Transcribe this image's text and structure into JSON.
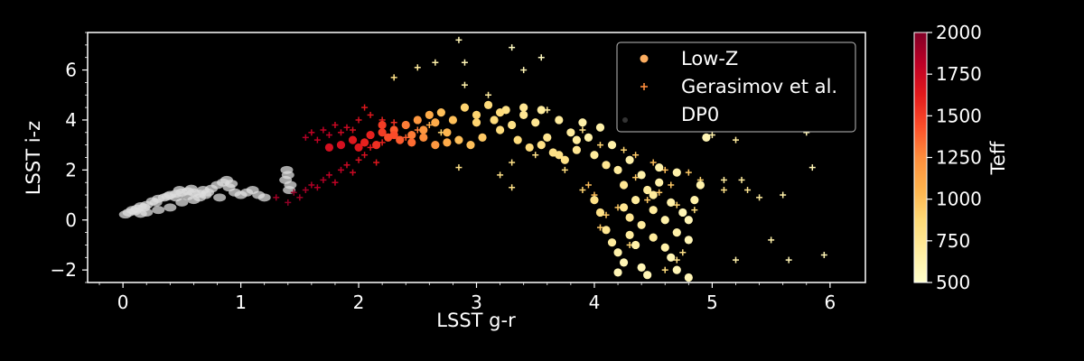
{
  "chart_data": {
    "type": "scatter",
    "xlabel": "LSST g-r",
    "ylabel": "LSST i-z",
    "xlim": [
      -0.3,
      6.3
    ],
    "ylim": [
      -2.5,
      7.5
    ],
    "x_ticks": [
      0,
      1,
      2,
      3,
      4,
      5,
      6
    ],
    "x_tick_labels": [
      "0",
      "1",
      "2",
      "3",
      "4",
      "5",
      "6"
    ],
    "y_ticks": [
      -2,
      0,
      2,
      4,
      6
    ],
    "y_tick_labels": [
      "−2",
      "0",
      "2",
      "4",
      "6"
    ],
    "background": "#000000",
    "colorbar": {
      "label": "Teff",
      "range": [
        500,
        2000
      ],
      "ticks": [
        500,
        750,
        1000,
        1250,
        1500,
        1750,
        2000
      ],
      "tick_labels": [
        "500",
        "750",
        "1000",
        "1250",
        "1500",
        "1750",
        "2000"
      ],
      "colormap": [
        "#ffffcc",
        "#ffeda0",
        "#fed976",
        "#feb24c",
        "#fd8d3c",
        "#fc4e2a",
        "#e31a1c",
        "#bd0026",
        "#800026"
      ]
    },
    "legend": {
      "placement": "top-right",
      "entries": [
        {
          "label": "Low-Z",
          "marker": "circle",
          "color": "#fdae61"
        },
        {
          "label": "Gerasimov et al.",
          "marker": "plus",
          "color": "#fd8d3c"
        },
        {
          "label": "DP0",
          "marker": "dot",
          "color": "#333333"
        }
      ]
    },
    "series": [
      {
        "name": "DP0",
        "marker": "dot",
        "color": "#dddddd",
        "points": [
          [
            0.02,
            0.22
          ],
          [
            0.05,
            0.3
          ],
          [
            0.08,
            0.4
          ],
          [
            0.12,
            0.45
          ],
          [
            0.15,
            0.55
          ],
          [
            0.2,
            0.6
          ],
          [
            0.25,
            0.75
          ],
          [
            0.3,
            0.85
          ],
          [
            0.35,
            0.9
          ],
          [
            0.4,
            1.0
          ],
          [
            0.45,
            1.05
          ],
          [
            0.5,
            1.1
          ],
          [
            0.55,
            1.15
          ],
          [
            0.6,
            1.1
          ],
          [
            0.65,
            1.05
          ],
          [
            0.7,
            1.0
          ],
          [
            0.1,
            0.35
          ],
          [
            0.18,
            0.5
          ],
          [
            0.28,
            0.7
          ],
          [
            0.38,
            0.95
          ],
          [
            0.48,
            1.2
          ],
          [
            0.58,
            1.25
          ],
          [
            0.68,
            1.2
          ],
          [
            0.75,
            1.25
          ],
          [
            0.8,
            1.4
          ],
          [
            0.85,
            1.5
          ],
          [
            0.9,
            1.3
          ],
          [
            0.95,
            1.1
          ],
          [
            1.0,
            1.0
          ],
          [
            1.05,
            1.1
          ],
          [
            1.1,
            1.2
          ],
          [
            0.82,
            0.9
          ],
          [
            0.88,
            1.6
          ],
          [
            0.92,
            1.45
          ],
          [
            1.15,
            1.0
          ],
          [
            1.2,
            0.9
          ],
          [
            1.38,
            1.6
          ],
          [
            1.4,
            1.8
          ],
          [
            1.42,
            1.4
          ],
          [
            1.39,
            2.0
          ],
          [
            1.41,
            1.2
          ],
          [
            0.3,
            0.4
          ],
          [
            0.4,
            0.5
          ],
          [
            0.5,
            0.7
          ],
          [
            0.6,
            0.8
          ],
          [
            0.2,
            0.3
          ],
          [
            0.15,
            0.25
          ],
          [
            0.45,
            0.9
          ],
          [
            0.55,
            0.95
          ],
          [
            0.65,
            0.9
          ],
          [
            0.72,
            1.1
          ]
        ]
      },
      {
        "name": "Gerasimov et al.",
        "marker": "plus",
        "points": [
          [
            1.3,
            0.9,
            1900
          ],
          [
            1.45,
            1.1,
            1950
          ],
          [
            1.55,
            1.2,
            1900
          ],
          [
            1.6,
            1.4,
            1850
          ],
          [
            1.7,
            1.6,
            1850
          ],
          [
            1.75,
            1.8,
            1800
          ],
          [
            1.85,
            2.0,
            1800
          ],
          [
            1.9,
            2.2,
            1750
          ],
          [
            2.0,
            2.4,
            1700
          ],
          [
            2.05,
            2.6,
            1700
          ],
          [
            2.1,
            2.9,
            1650
          ],
          [
            2.2,
            3.1,
            1600
          ],
          [
            2.25,
            3.3,
            1550
          ],
          [
            1.6,
            3.5,
            1800
          ],
          [
            1.7,
            3.6,
            1800
          ],
          [
            1.8,
            3.8,
            1750
          ],
          [
            1.9,
            3.7,
            1750
          ],
          [
            2.0,
            4.0,
            1700
          ],
          [
            2.1,
            4.2,
            1650
          ],
          [
            2.2,
            4.0,
            1600
          ],
          [
            2.3,
            3.9,
            1550
          ],
          [
            1.55,
            3.3,
            1850
          ],
          [
            1.65,
            3.2,
            1800
          ],
          [
            1.75,
            3.4,
            1800
          ],
          [
            1.85,
            3.5,
            1750
          ],
          [
            1.95,
            3.6,
            1700
          ],
          [
            2.05,
            4.5,
            1650
          ],
          [
            1.4,
            0.7,
            1950
          ],
          [
            1.5,
            0.9,
            1900
          ],
          [
            1.65,
            1.3,
            1850
          ],
          [
            1.8,
            1.5,
            1800
          ],
          [
            1.95,
            1.9,
            1750
          ],
          [
            2.15,
            2.3,
            1650
          ],
          [
            2.3,
            5.7,
            800
          ],
          [
            2.5,
            6.1,
            700
          ],
          [
            2.65,
            6.3,
            650
          ],
          [
            2.9,
            6.3,
            600
          ],
          [
            2.85,
            7.2,
            600
          ],
          [
            3.3,
            6.9,
            550
          ],
          [
            3.55,
            6.5,
            550
          ],
          [
            3.4,
            6.0,
            600
          ],
          [
            2.9,
            5.4,
            650
          ],
          [
            3.1,
            5.0,
            700
          ],
          [
            3.6,
            4.4,
            700
          ],
          [
            3.9,
            3.6,
            800
          ],
          [
            4.05,
            3.0,
            900
          ],
          [
            4.25,
            2.8,
            900
          ],
          [
            4.35,
            2.6,
            950
          ],
          [
            4.5,
            2.3,
            1000
          ],
          [
            4.6,
            2.0,
            1000
          ],
          [
            4.8,
            1.9,
            950
          ],
          [
            4.9,
            1.6,
            900
          ],
          [
            5.1,
            1.2,
            800
          ],
          [
            5.3,
            1.2,
            750
          ],
          [
            5.4,
            0.9,
            700
          ],
          [
            5.6,
            1.0,
            650
          ],
          [
            5.2,
            3.2,
            700
          ],
          [
            5.0,
            3.4,
            650
          ],
          [
            5.1,
            1.6,
            700
          ],
          [
            5.25,
            1.6,
            700
          ],
          [
            5.5,
            -0.8,
            650
          ],
          [
            5.65,
            -1.6,
            600
          ],
          [
            5.95,
            -1.4,
            600
          ],
          [
            5.2,
            -1.6,
            650
          ],
          [
            5.85,
            2.1,
            600
          ],
          [
            4.7,
            0.6,
            900
          ],
          [
            4.85,
            0.4,
            850
          ],
          [
            4.75,
            -1.3,
            800
          ],
          [
            4.7,
            -1.6,
            800
          ],
          [
            4.6,
            -2.0,
            850
          ],
          [
            4.3,
            -1.0,
            900
          ],
          [
            4.1,
            0.2,
            950
          ],
          [
            4.05,
            -0.3,
            950
          ],
          [
            3.9,
            1.2,
            900
          ],
          [
            3.75,
            2.0,
            850
          ],
          [
            3.5,
            2.6,
            800
          ],
          [
            3.3,
            2.3,
            800
          ],
          [
            3.2,
            1.8,
            800
          ],
          [
            3.3,
            1.3,
            800
          ],
          [
            2.85,
            2.1,
            800
          ],
          [
            4.45,
            0.8,
            950
          ],
          [
            4.55,
            1.1,
            950
          ],
          [
            4.65,
            1.4,
            950
          ],
          [
            4.2,
            0.5,
            950
          ],
          [
            4.35,
            1.7,
            950
          ],
          [
            5.8,
            3.5,
            600
          ],
          [
            4.0,
            1.0,
            1000
          ],
          [
            3.95,
            1.4,
            1000
          ],
          [
            2.7,
            3.5,
            900
          ],
          [
            2.4,
            3.3,
            1400
          ],
          [
            2.5,
            3.6,
            1300
          ],
          [
            2.6,
            3.8,
            1100
          ]
        ]
      },
      {
        "name": "Low-Z",
        "marker": "circle",
        "points": [
          [
            1.75,
            2.9,
            1700
          ],
          [
            1.85,
            3.0,
            1700
          ],
          [
            1.95,
            3.2,
            1650
          ],
          [
            2.0,
            2.9,
            1650
          ],
          [
            2.05,
            3.1,
            1600
          ],
          [
            2.1,
            3.4,
            1600
          ],
          [
            2.15,
            3.0,
            1550
          ],
          [
            2.2,
            3.5,
            1500
          ],
          [
            2.25,
            3.3,
            1450
          ],
          [
            2.3,
            3.6,
            1400
          ],
          [
            2.35,
            3.2,
            1400
          ],
          [
            2.4,
            3.8,
            1300
          ],
          [
            2.45,
            3.4,
            1300
          ],
          [
            2.5,
            4.0,
            1200
          ],
          [
            2.55,
            3.6,
            1200
          ],
          [
            2.6,
            4.2,
            1100
          ],
          [
            2.65,
            3.9,
            1100
          ],
          [
            2.7,
            4.3,
            1000
          ],
          [
            2.75,
            3.5,
            1050
          ],
          [
            2.8,
            4.0,
            1000
          ],
          [
            2.85,
            3.2,
            1000
          ],
          [
            2.9,
            4.5,
            900
          ],
          [
            2.95,
            3.0,
            1000
          ],
          [
            3.0,
            3.9,
            900
          ],
          [
            3.05,
            3.3,
            950
          ],
          [
            3.1,
            4.6,
            850
          ],
          [
            3.15,
            4.0,
            850
          ],
          [
            3.2,
            3.6,
            850
          ],
          [
            3.25,
            4.4,
            800
          ],
          [
            3.3,
            3.8,
            800
          ],
          [
            3.35,
            3.2,
            850
          ],
          [
            3.4,
            4.2,
            750
          ],
          [
            3.45,
            2.9,
            850
          ],
          [
            3.5,
            3.9,
            750
          ],
          [
            3.55,
            4.4,
            700
          ],
          [
            3.6,
            3.3,
            750
          ],
          [
            3.65,
            2.7,
            800
          ],
          [
            3.7,
            4.0,
            700
          ],
          [
            3.75,
            2.4,
            800
          ],
          [
            3.8,
            3.5,
            700
          ],
          [
            3.85,
            2.8,
            750
          ],
          [
            3.9,
            3.9,
            650
          ],
          [
            3.95,
            3.3,
            650
          ],
          [
            4.0,
            2.6,
            700
          ],
          [
            4.05,
            3.7,
            650
          ],
          [
            4.1,
            2.2,
            750
          ],
          [
            4.15,
            3.0,
            650
          ],
          [
            4.2,
            2.0,
            700
          ],
          [
            4.25,
            1.4,
            750
          ],
          [
            4.3,
            2.4,
            650
          ],
          [
            4.35,
            0.8,
            700
          ],
          [
            4.4,
            1.8,
            650
          ],
          [
            4.45,
            1.2,
            700
          ],
          [
            4.5,
            0.4,
            700
          ],
          [
            4.55,
            1.5,
            650
          ],
          [
            4.6,
            0.0,
            650
          ],
          [
            4.65,
            0.7,
            650
          ],
          [
            4.7,
            -0.5,
            650
          ],
          [
            4.75,
            0.3,
            600
          ],
          [
            4.8,
            -0.8,
            600
          ],
          [
            4.0,
            0.8,
            800
          ],
          [
            4.05,
            0.3,
            800
          ],
          [
            4.1,
            -0.4,
            750
          ],
          [
            4.15,
            -0.9,
            700
          ],
          [
            4.2,
            -1.3,
            650
          ],
          [
            4.25,
            -1.7,
            600
          ],
          [
            4.3,
            -0.6,
            700
          ],
          [
            4.35,
            -1.0,
            650
          ],
          [
            4.4,
            -1.9,
            600
          ],
          [
            4.45,
            -2.2,
            600
          ],
          [
            4.2,
            -2.1,
            600
          ],
          [
            4.6,
            -1.1,
            650
          ],
          [
            4.65,
            -1.5,
            600
          ],
          [
            4.7,
            -2.0,
            600
          ],
          [
            4.8,
            -2.3,
            600
          ],
          [
            4.85,
            0.8,
            650
          ],
          [
            4.9,
            1.4,
            650
          ],
          [
            4.95,
            3.3,
            600
          ],
          [
            2.2,
            3.8,
            1500
          ],
          [
            2.3,
            3.4,
            1450
          ],
          [
            2.45,
            3.1,
            1350
          ],
          [
            2.55,
            3.3,
            1250
          ],
          [
            2.65,
            3.0,
            1200
          ],
          [
            2.75,
            3.1,
            1100
          ],
          [
            3.0,
            4.2,
            900
          ],
          [
            3.2,
            4.3,
            850
          ],
          [
            3.4,
            4.5,
            750
          ],
          [
            3.55,
            3.0,
            800
          ],
          [
            3.7,
            2.6,
            800
          ],
          [
            3.85,
            3.2,
            700
          ],
          [
            4.4,
            -0.2,
            700
          ],
          [
            4.3,
            0.1,
            750
          ],
          [
            4.5,
            -0.7,
            700
          ],
          [
            4.55,
            2.1,
            650
          ],
          [
            4.7,
            1.9,
            650
          ],
          [
            4.25,
            0.5,
            750
          ],
          [
            4.5,
            1.0,
            700
          ],
          [
            4.8,
            0.0,
            600
          ]
        ]
      }
    ]
  }
}
